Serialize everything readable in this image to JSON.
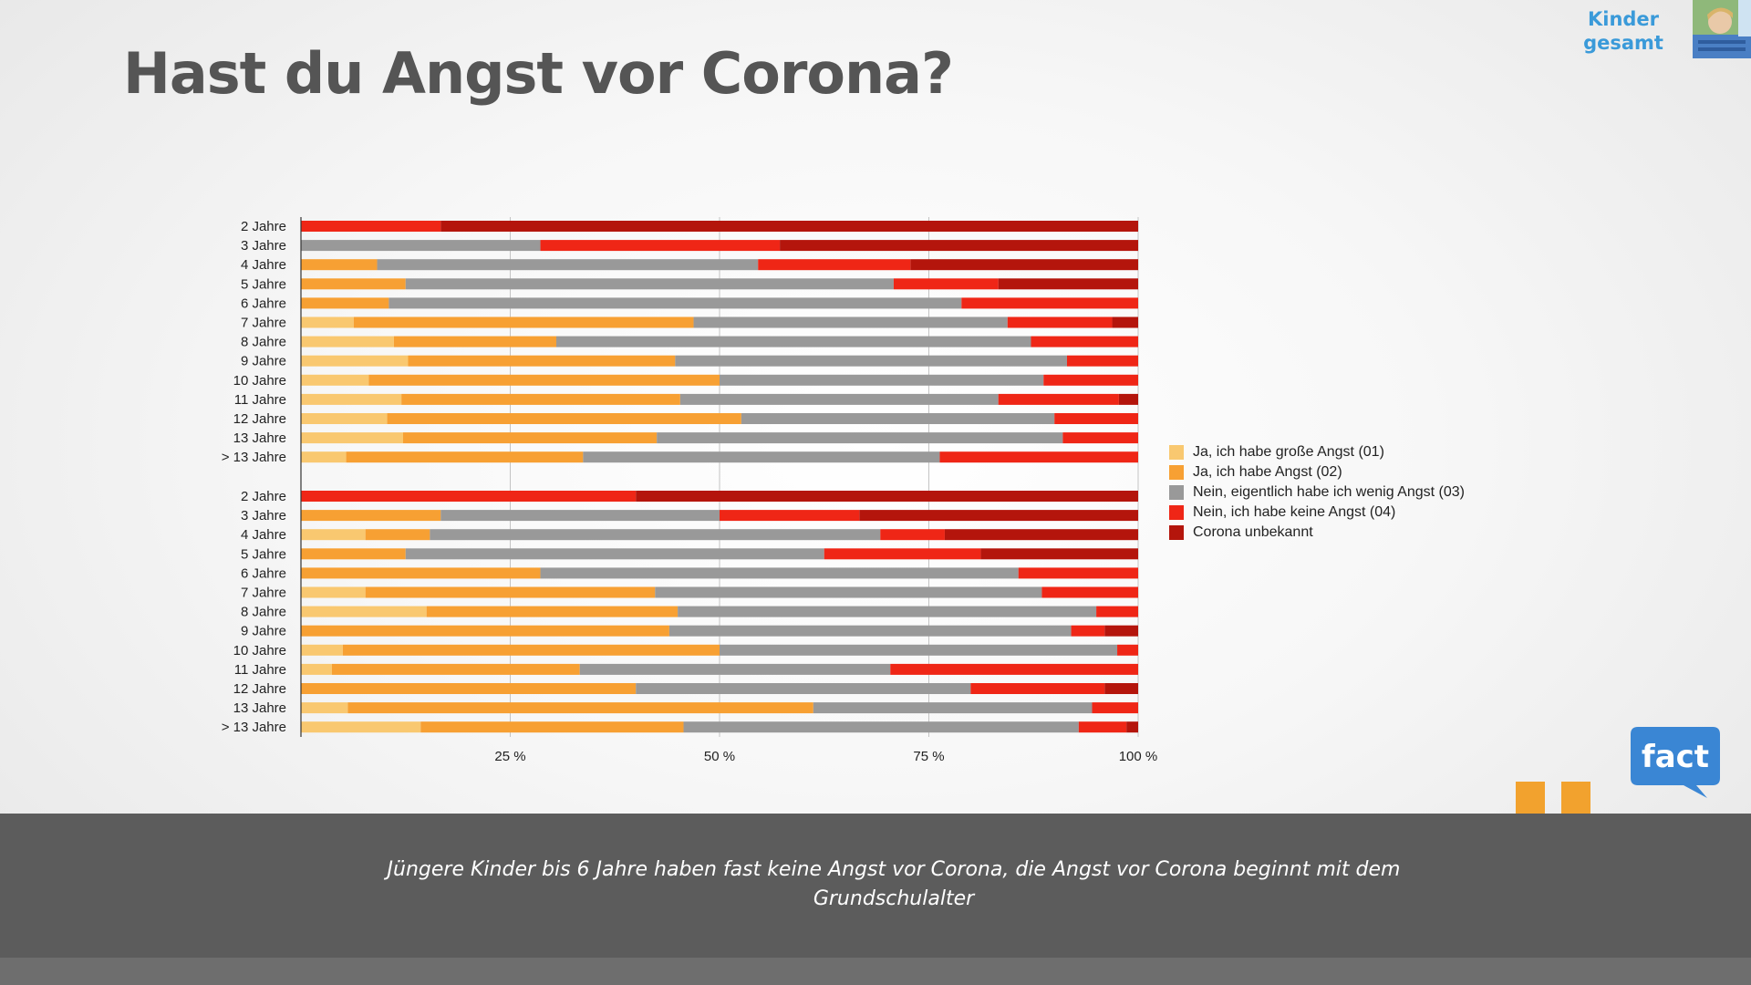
{
  "header": {
    "title": "Hast du Angst vor Corona?",
    "corner_label": "Kinder gesamt"
  },
  "colors": {
    "sehr_angst": "#f9c870",
    "angst": "#f7a033",
    "wenig_angst": "#999999",
    "keine_angst": "#ef2616",
    "unbekannt": "#b4150c",
    "accent": "#3a9ad9",
    "footer_bg": "#5c5c5c",
    "quote": "#f2a22e"
  },
  "chart_data": {
    "type": "bar",
    "orientation": "horizontal",
    "stacked": "percent",
    "xlim": [
      0,
      100
    ],
    "xticks": [
      "25 %",
      "50 %",
      "75 %",
      "100 %"
    ],
    "grid": true,
    "legend_position": "right",
    "series": [
      {
        "name": "Ja, ich habe große Angst (01)",
        "color": "#f9c870"
      },
      {
        "name": "Ja, ich habe Angst (02)",
        "color": "#f7a033"
      },
      {
        "name": "Nein, eigentlich habe ich wenig Angst (03)",
        "color": "#999999"
      },
      {
        "name": "Nein, ich habe keine Angst (04)",
        "color": "#ef2616"
      },
      {
        "name": "Corona unbekannt",
        "color": "#b4150c"
      }
    ],
    "groups": [
      {
        "rows": [
          {
            "label": "2 Jahre",
            "values": [
              0,
              0,
              0,
              16.7,
              83.3
            ]
          },
          {
            "label": "3 Jahre",
            "values": [
              0,
              0,
              28.6,
              28.6,
              42.8
            ]
          },
          {
            "label": "4 Jahre",
            "values": [
              0,
              9.1,
              45.5,
              18.2,
              27.2
            ]
          },
          {
            "label": "5 Jahre",
            "values": [
              0,
              12.5,
              58.3,
              12.5,
              16.7
            ]
          },
          {
            "label": "6 Jahre",
            "values": [
              0,
              10.5,
              68.4,
              21.1,
              0
            ]
          },
          {
            "label": "7 Jahre",
            "values": [
              6.3,
              40.6,
              37.5,
              12.5,
              3.1
            ]
          },
          {
            "label": "8 Jahre",
            "values": [
              11.1,
              19.4,
              56.7,
              12.8,
              0
            ]
          },
          {
            "label": "9 Jahre",
            "values": [
              12.8,
              31.9,
              46.8,
              8.5,
              0
            ]
          },
          {
            "label": "10 Jahre",
            "values": [
              8.1,
              41.9,
              38.7,
              11.3,
              0
            ]
          },
          {
            "label": "11 Jahre",
            "values": [
              12.0,
              33.3,
              38.0,
              14.4,
              2.3
            ]
          },
          {
            "label": "12 Jahre",
            "values": [
              10.3,
              42.3,
              37.4,
              10.0,
              0
            ]
          },
          {
            "label": "13 Jahre",
            "values": [
              12.2,
              30.3,
              48.5,
              9.0,
              0
            ]
          },
          {
            "label": "> 13 Jahre",
            "values": [
              5.4,
              28.3,
              42.6,
              23.7,
              0
            ]
          }
        ]
      },
      {
        "rows": [
          {
            "label": "2 Jahre",
            "values": [
              0,
              0,
              0,
              40.0,
              60.0
            ]
          },
          {
            "label": "3 Jahre",
            "values": [
              0,
              16.7,
              33.3,
              16.7,
              33.3
            ]
          },
          {
            "label": "4 Jahre",
            "values": [
              7.7,
              7.7,
              53.8,
              7.7,
              23.1
            ]
          },
          {
            "label": "5 Jahre",
            "values": [
              0,
              12.5,
              50.0,
              18.7,
              18.8
            ]
          },
          {
            "label": "6 Jahre",
            "values": [
              0,
              28.6,
              57.1,
              14.3,
              0
            ]
          },
          {
            "label": "7 Jahre",
            "values": [
              7.7,
              34.6,
              46.2,
              11.5,
              0
            ]
          },
          {
            "label": "8 Jahre",
            "values": [
              15.0,
              30.0,
              50.0,
              5.0,
              0
            ]
          },
          {
            "label": "9 Jahre",
            "values": [
              0,
              44.0,
              48.0,
              4.0,
              4.0
            ]
          },
          {
            "label": "10 Jahre",
            "values": [
              5.0,
              45.0,
              47.5,
              2.5,
              0
            ]
          },
          {
            "label": "11 Jahre",
            "values": [
              3.7,
              29.6,
              37.1,
              29.6,
              0
            ]
          },
          {
            "label": "12 Jahre",
            "values": [
              0,
              40.0,
              40.0,
              16.0,
              4.0
            ]
          },
          {
            "label": "13 Jahre",
            "values": [
              5.6,
              55.6,
              33.3,
              5.5,
              0
            ]
          },
          {
            "label": "> 13 Jahre",
            "values": [
              14.3,
              31.4,
              47.2,
              5.7,
              1.4
            ]
          }
        ]
      }
    ]
  },
  "footer": {
    "text": "Jüngere Kinder bis 6 Jahre haben fast keine Angst vor Corona, die Angst vor Corona beginnt mit dem Grundschulalter"
  },
  "logo": {
    "text": "fact"
  }
}
